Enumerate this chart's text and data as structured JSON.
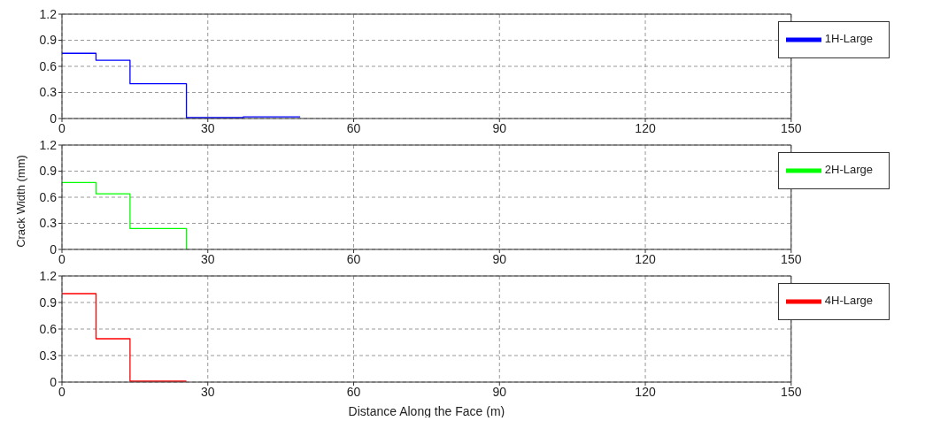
{
  "chart_data": [
    {
      "type": "step",
      "x": [
        0,
        7,
        14,
        25.6,
        37.3,
        49
      ],
      "series": [
        {
          "name": "1H-Large",
          "color": "#0000ff",
          "values": [
            0.75,
            0.67,
            0.4,
            0.01,
            0.02,
            0.02
          ]
        }
      ],
      "xlim": [
        0,
        150
      ],
      "xticks": [
        0,
        30,
        60,
        90,
        120,
        150
      ],
      "ylim": [
        0,
        1.2
      ],
      "yticks": [
        0,
        0.3,
        0.6,
        0.9,
        1.2
      ],
      "grid": true,
      "legend": "top right",
      "marker": "none",
      "line_style": "solid"
    },
    {
      "type": "step",
      "x": [
        0,
        7,
        14,
        25.6
      ],
      "ylabel": "Crack Width (mm)",
      "series": [
        {
          "name": "2H-Large",
          "color": "#00ff00",
          "values": [
            0.77,
            0.64,
            0.24,
            0
          ]
        }
      ],
      "xlim": [
        0,
        150
      ],
      "xticks": [
        0,
        30,
        60,
        90,
        120,
        150
      ],
      "ylim": [
        0,
        1.2
      ],
      "yticks": [
        0,
        0.3,
        0.6,
        0.9,
        1.2
      ],
      "grid": true,
      "legend": "top right",
      "marker": "none",
      "line_style": "solid"
    },
    {
      "type": "step",
      "x": [
        0,
        7,
        14,
        25.6
      ],
      "xlabel": "Distance Along the Face (m)",
      "series": [
        {
          "name": "4H-Large",
          "color": "#ff0000",
          "values": [
            1.0,
            0.49,
            0.01,
            0.01
          ]
        }
      ],
      "xlim": [
        0,
        150
      ],
      "xticks": [
        0,
        30,
        60,
        90,
        120,
        150
      ],
      "ylim": [
        0,
        1.2
      ],
      "yticks": [
        0,
        0.3,
        0.6,
        0.9,
        1.2
      ],
      "grid": true,
      "legend": "top right",
      "marker": "none",
      "line_style": "solid"
    }
  ]
}
